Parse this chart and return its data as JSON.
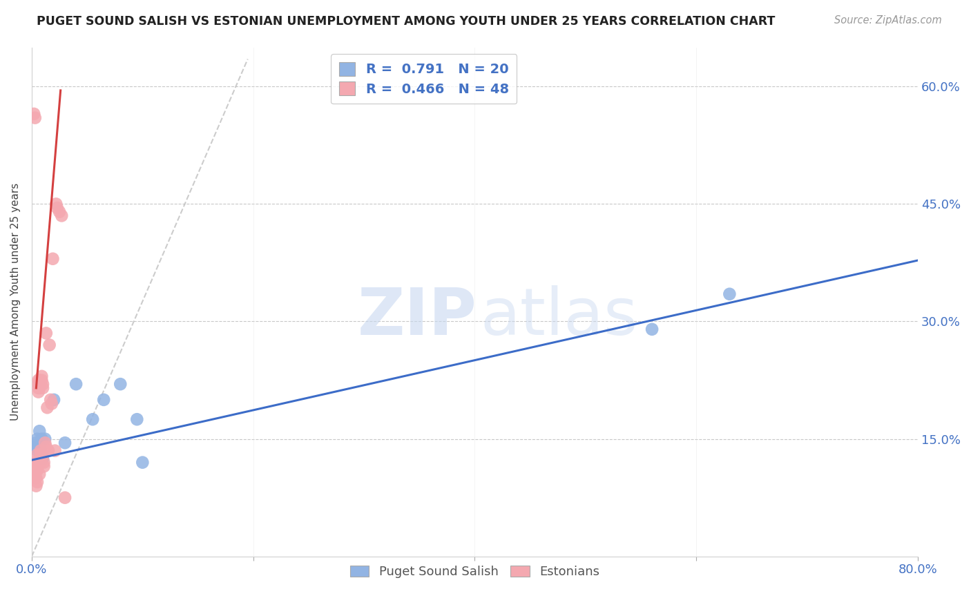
{
  "title": "PUGET SOUND SALISH VS ESTONIAN UNEMPLOYMENT AMONG YOUTH UNDER 25 YEARS CORRELATION CHART",
  "source": "Source: ZipAtlas.com",
  "ylabel": "Unemployment Among Youth under 25 years",
  "xlabel_blue_label": "Puget Sound Salish",
  "xlabel_pink_label": "Estonians",
  "xlim": [
    0.0,
    0.8
  ],
  "ylim": [
    0.0,
    0.65
  ],
  "yticks": [
    0.15,
    0.3,
    0.45,
    0.6
  ],
  "ytick_labels": [
    "15.0%",
    "30.0%",
    "45.0%",
    "60.0%"
  ],
  "xtick_labels": [
    "0.0%",
    "",
    "",
    "",
    "80.0%"
  ],
  "blue_R": 0.791,
  "blue_N": 20,
  "pink_R": 0.466,
  "pink_N": 48,
  "blue_color": "#92b4e3",
  "pink_color": "#f4a8b0",
  "blue_line_color": "#3c6cc8",
  "pink_line_color": "#d44040",
  "tick_color": "#4472c4",
  "blue_line_x": [
    0.0,
    0.8
  ],
  "blue_line_y": [
    0.123,
    0.378
  ],
  "pink_line_x": [
    0.004,
    0.026
  ],
  "pink_line_y": [
    0.215,
    0.595
  ],
  "dash_line_x": [
    0.0,
    0.195
  ],
  "dash_line_y": [
    0.0,
    0.635
  ],
  "blue_x": [
    0.003,
    0.004,
    0.005,
    0.005,
    0.006,
    0.007,
    0.008,
    0.009,
    0.01,
    0.012,
    0.02,
    0.03,
    0.04,
    0.055,
    0.065,
    0.08,
    0.095,
    0.1,
    0.56,
    0.63
  ],
  "blue_y": [
    0.14,
    0.145,
    0.135,
    0.15,
    0.14,
    0.16,
    0.135,
    0.15,
    0.125,
    0.15,
    0.2,
    0.145,
    0.22,
    0.175,
    0.2,
    0.22,
    0.175,
    0.12,
    0.29,
    0.335
  ],
  "pink_x": [
    0.002,
    0.003,
    0.003,
    0.003,
    0.004,
    0.004,
    0.004,
    0.005,
    0.005,
    0.005,
    0.005,
    0.005,
    0.006,
    0.006,
    0.006,
    0.006,
    0.007,
    0.007,
    0.007,
    0.007,
    0.008,
    0.008,
    0.008,
    0.008,
    0.009,
    0.009,
    0.009,
    0.009,
    0.01,
    0.01,
    0.01,
    0.011,
    0.011,
    0.012,
    0.013,
    0.013,
    0.014,
    0.015,
    0.016,
    0.017,
    0.018,
    0.019,
    0.021,
    0.022,
    0.023,
    0.025,
    0.027,
    0.03
  ],
  "pink_y": [
    0.565,
    0.56,
    0.12,
    0.105,
    0.11,
    0.1,
    0.09,
    0.13,
    0.12,
    0.115,
    0.11,
    0.095,
    0.225,
    0.22,
    0.215,
    0.21,
    0.225,
    0.22,
    0.215,
    0.105,
    0.135,
    0.13,
    0.125,
    0.12,
    0.23,
    0.225,
    0.13,
    0.125,
    0.22,
    0.215,
    0.13,
    0.12,
    0.115,
    0.145,
    0.285,
    0.14,
    0.19,
    0.135,
    0.27,
    0.2,
    0.195,
    0.38,
    0.135,
    0.45,
    0.445,
    0.44,
    0.435,
    0.075
  ]
}
